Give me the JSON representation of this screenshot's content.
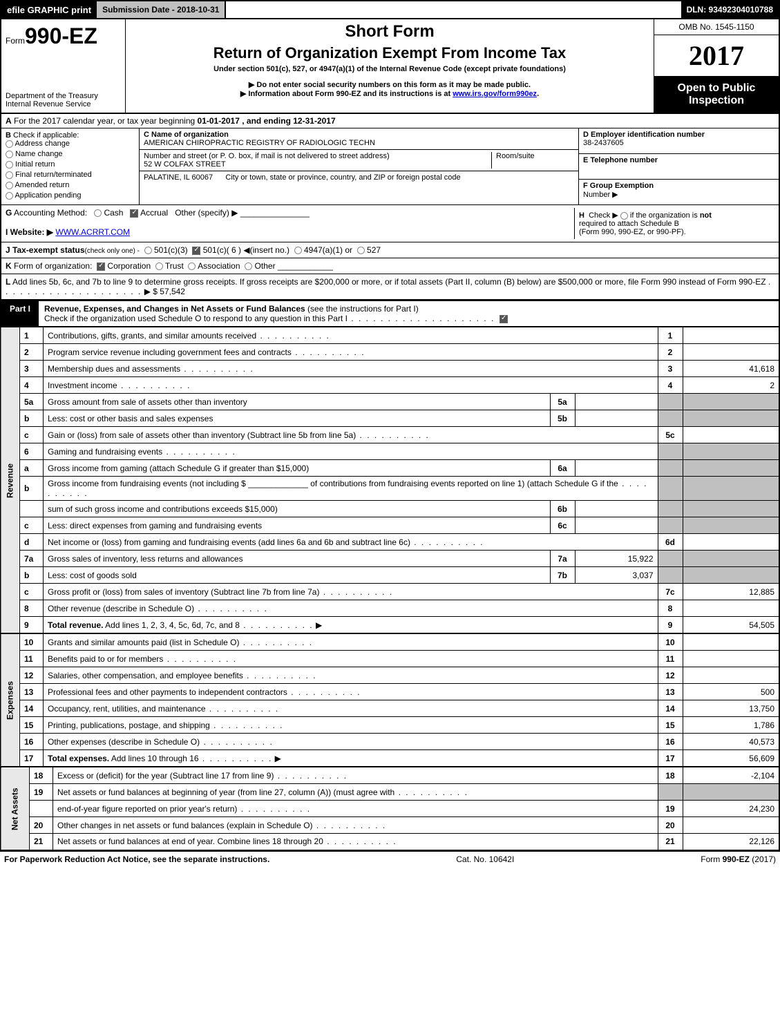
{
  "topbar": {
    "print": "efile GRAPHIC print",
    "submission": "Submission Date - 2018-10-31",
    "dln": "DLN: 93492304010788"
  },
  "header": {
    "form_prefix": "Form",
    "form_number": "990-EZ",
    "dept1": "Department of the Treasury",
    "dept2": "Internal Revenue Service",
    "title1": "Short Form",
    "title2": "Return of Organization Exempt From Income Tax",
    "subtitle": "Under section 501(c), 527, or 4947(a)(1) of the Internal Revenue Code (except private foundations)",
    "instruct1": "▶ Do not enter social security numbers on this form as it may be made public.",
    "instruct2_pre": "▶ Information about Form 990-EZ and its instructions is at ",
    "instruct2_link": "www.irs.gov/form990ez",
    "instruct2_post": ".",
    "omb": "OMB No. 1545-1150",
    "year": "2017",
    "open1": "Open to Public",
    "open2": "Inspection"
  },
  "section_a": {
    "label": "A",
    "text_pre": "For the 2017 calendar year, or tax year beginning ",
    "begin": "01-01-2017",
    "text_mid": " , and ending ",
    "end": "12-31-2017"
  },
  "b_checks": {
    "label": "B",
    "title": "Check if applicable:",
    "items": [
      "Address change",
      "Name change",
      "Initial return",
      "Final return/terminated",
      "Amended return",
      "Application pending"
    ]
  },
  "c_block": {
    "c_label": "C Name of organization",
    "c_value": "AMERICAN CHIROPRACTIC REGISTRY OF RADIOLOGIC TECHN",
    "street_label": "Number and street (or P. O. box, if mail is not delivered to street address)",
    "street_value": "52 W COLFAX STREET",
    "room_label": "Room/suite",
    "city_label": "City or town, state or province, country, and ZIP or foreign postal code",
    "city_value": "PALATINE, IL  60067"
  },
  "def_block": {
    "d_label": "D Employer identification number",
    "d_value": "38-2437605",
    "e_label": "E Telephone number",
    "e_value": "",
    "f_label": "F Group Exemption",
    "f_label2": "Number  ▶",
    "f_value": ""
  },
  "g_row": {
    "label": "G",
    "text": "Accounting Method:",
    "opts": [
      "Cash",
      "Accrual",
      "Other (specify) ▶"
    ],
    "accrual_checked": true
  },
  "h_box": {
    "label": "H",
    "text1": "Check ▶",
    "text2": "if the organization is",
    "not": "not",
    "text3": "required to attach Schedule B",
    "text4": "(Form 990, 990-EZ, or 990-PF)."
  },
  "i_row": {
    "label": "I Website: ▶",
    "value": "WWW.ACRRT.COM"
  },
  "j_row": {
    "label": "J Tax-exempt status",
    "sub": "(check only one) -",
    "opts": [
      "501(c)(3)",
      "501(c)( 6 ) ◀(insert no.)",
      "4947(a)(1) or",
      "527"
    ],
    "checked_idx": 1
  },
  "k_row": {
    "label": "K",
    "text": "Form of organization:",
    "opts": [
      "Corporation",
      "Trust",
      "Association",
      "Other"
    ],
    "checked_idx": 0
  },
  "l_row": {
    "label": "L",
    "text": "Add lines 5b, 6c, and 7b to line 9 to determine gross receipts. If gross receipts are $200,000 or more, or if total assets (Part II, column (B) below) are $500,000 or more, file Form 990 instead of Form 990-EZ",
    "amount": "▶ $ 57,542"
  },
  "part1": {
    "label": "Part I",
    "title_bold": "Revenue, Expenses, and Changes in Net Assets or Fund Balances",
    "title_rest": " (see the instructions for Part I)",
    "check_text": "Check if the organization used Schedule O to respond to any question in this Part I",
    "check_checked": true
  },
  "lines": [
    {
      "n": "1",
      "desc": "Contributions, gifts, grants, and similar amounts received",
      "rnum": "1",
      "rval": ""
    },
    {
      "n": "2",
      "desc": "Program service revenue including government fees and contracts",
      "rnum": "2",
      "rval": ""
    },
    {
      "n": "3",
      "desc": "Membership dues and assessments",
      "rnum": "3",
      "rval": "41,618"
    },
    {
      "n": "4",
      "desc": "Investment income",
      "rnum": "4",
      "rval": "2"
    },
    {
      "n": "5a",
      "desc": "Gross amount from sale of assets other than inventory",
      "mid": "5a",
      "midval": "",
      "shade_r": true
    },
    {
      "n": "b",
      "desc": "Less: cost or other basis and sales expenses",
      "mid": "5b",
      "midval": "",
      "shade_r": true
    },
    {
      "n": "c",
      "desc": "Gain or (loss) from sale of assets other than inventory (Subtract line 5b from line 5a)",
      "rnum": "5c",
      "rval": ""
    },
    {
      "n": "6",
      "desc": "Gaming and fundraising events",
      "shade_r": true,
      "no_mid": true
    },
    {
      "n": "a",
      "desc": "Gross income from gaming (attach Schedule G if greater than $15,000)",
      "mid": "6a",
      "midval": "",
      "shade_r": true
    },
    {
      "n": "b",
      "desc": "Gross income from fundraising events (not including $ _____________ of contributions from fundraising events reported on line 1) (attach Schedule G if the",
      "shade_r": true,
      "no_mid": true
    },
    {
      "n": "",
      "desc": "sum of such gross income and contributions exceeds $15,000)",
      "mid": "6b",
      "midval": "",
      "shade_r": true
    },
    {
      "n": "c",
      "desc": "Less: direct expenses from gaming and fundraising events",
      "mid": "6c",
      "midval": "",
      "shade_r": true
    },
    {
      "n": "d",
      "desc": "Net income or (loss) from gaming and fundraising events (add lines 6a and 6b and subtract line 6c)",
      "rnum": "6d",
      "rval": ""
    },
    {
      "n": "7a",
      "desc": "Gross sales of inventory, less returns and allowances",
      "mid": "7a",
      "midval": "15,922",
      "shade_r": true
    },
    {
      "n": "b",
      "desc": "Less: cost of goods sold",
      "mid": "7b",
      "midval": "3,037",
      "shade_r": true
    },
    {
      "n": "c",
      "desc": "Gross profit or (loss) from sales of inventory (Subtract line 7b from line 7a)",
      "rnum": "7c",
      "rval": "12,885"
    },
    {
      "n": "8",
      "desc": "Other revenue (describe in Schedule O)",
      "rnum": "8",
      "rval": ""
    },
    {
      "n": "9",
      "desc_bold": "Total revenue.",
      "desc": " Add lines 1, 2, 3, 4, 5c, 6d, 7c, and 8",
      "rnum": "9",
      "rval": "54,505",
      "arrow": true
    }
  ],
  "expense_lines": [
    {
      "n": "10",
      "desc": "Grants and similar amounts paid (list in Schedule O)",
      "rnum": "10",
      "rval": ""
    },
    {
      "n": "11",
      "desc": "Benefits paid to or for members",
      "rnum": "11",
      "rval": ""
    },
    {
      "n": "12",
      "desc": "Salaries, other compensation, and employee benefits",
      "rnum": "12",
      "rval": ""
    },
    {
      "n": "13",
      "desc": "Professional fees and other payments to independent contractors",
      "rnum": "13",
      "rval": "500"
    },
    {
      "n": "14",
      "desc": "Occupancy, rent, utilities, and maintenance",
      "rnum": "14",
      "rval": "13,750"
    },
    {
      "n": "15",
      "desc": "Printing, publications, postage, and shipping",
      "rnum": "15",
      "rval": "1,786"
    },
    {
      "n": "16",
      "desc": "Other expenses (describe in Schedule O)",
      "rnum": "16",
      "rval": "40,573"
    },
    {
      "n": "17",
      "desc_bold": "Total expenses.",
      "desc": " Add lines 10 through 16",
      "rnum": "17",
      "rval": "56,609",
      "arrow": true
    }
  ],
  "net_lines": [
    {
      "n": "18",
      "desc": "Excess or (deficit) for the year (Subtract line 17 from line 9)",
      "rnum": "18",
      "rval": "-2,104"
    },
    {
      "n": "19",
      "desc": "Net assets or fund balances at beginning of year (from line 27, column (A)) (must agree with",
      "shade_r": true,
      "no_rnum": true
    },
    {
      "n": "",
      "desc": "end-of-year figure reported on prior year's return)",
      "rnum": "19",
      "rval": "24,230"
    },
    {
      "n": "20",
      "desc": "Other changes in net assets or fund balances (explain in Schedule O)",
      "rnum": "20",
      "rval": ""
    },
    {
      "n": "21",
      "desc": "Net assets or fund balances at end of year. Combine lines 18 through 20",
      "rnum": "21",
      "rval": "22,126"
    }
  ],
  "side_labels": {
    "revenue": "Revenue",
    "expenses": "Expenses",
    "net": "Net Assets"
  },
  "footer": {
    "left": "For Paperwork Reduction Act Notice, see the separate instructions.",
    "mid": "Cat. No. 10642I",
    "right_pre": "Form ",
    "right_bold": "990-EZ",
    "right_post": " (2017)"
  },
  "colors": {
    "black": "#000000",
    "shade": "#c0c0c0",
    "link": "#0000cc"
  }
}
